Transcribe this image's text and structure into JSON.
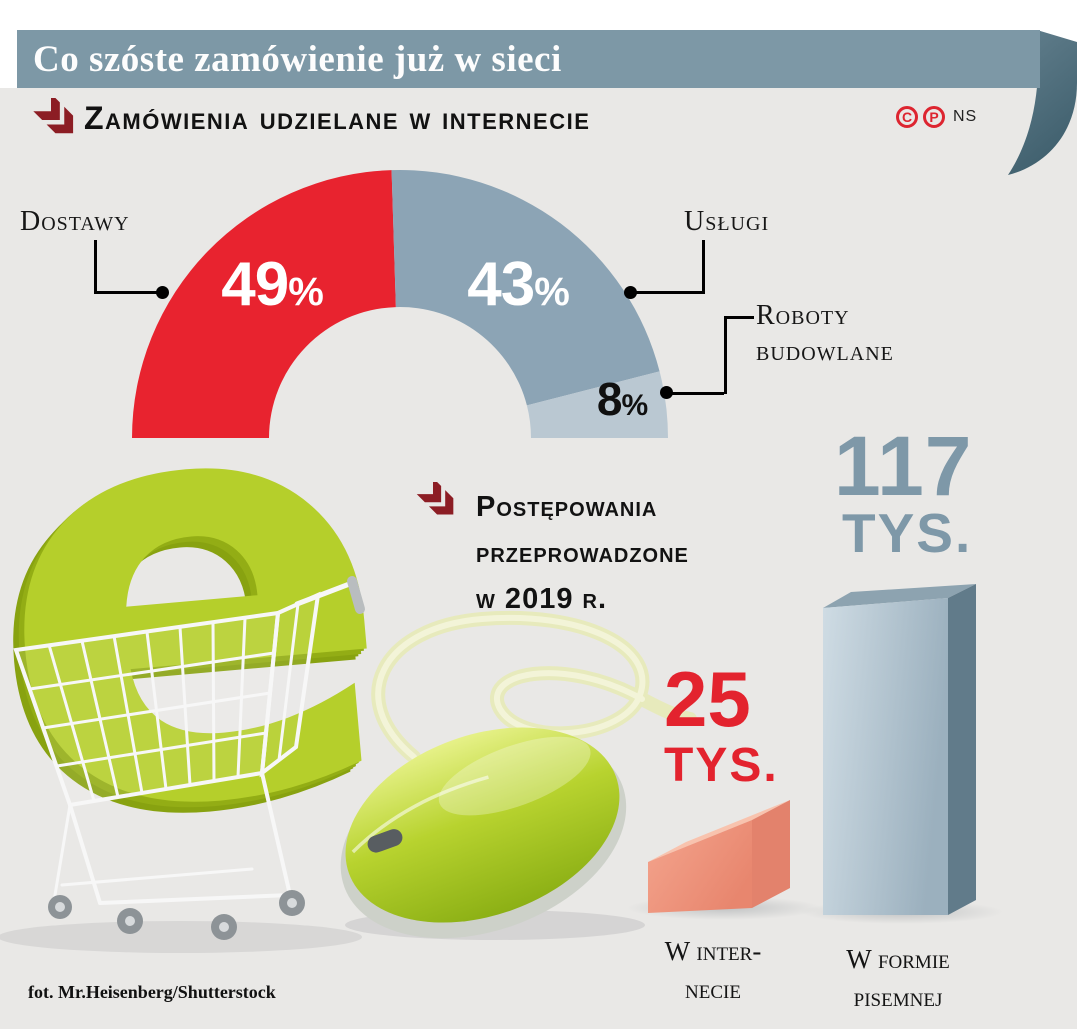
{
  "header": {
    "title": "Co szóste zamówienie już w sieci",
    "marks": {
      "c": "C",
      "p": "P",
      "agency": "NS"
    }
  },
  "sections": {
    "donut_heading": "Zamówienia udzielane w internecie",
    "bars_heading_lines": [
      "Postępowania",
      "przeprowadzone",
      "w 2019 r."
    ]
  },
  "chart_data": [
    {
      "type": "pie",
      "variant": "half-donut",
      "title": "Zamówienia udzielane w internecie",
      "unit": "%",
      "percent_sign": "%",
      "start_angle": 180,
      "end_angle": 0,
      "inner_radius_ratio": 0.49,
      "labels_position": "outside-with-leader-lines",
      "slices": [
        {
          "label": "Dostawy",
          "value": 49,
          "color": "#e8232f",
          "value_color": "#ffffff"
        },
        {
          "label": "Usługi",
          "value": 43,
          "color": "#8ca4b5",
          "value_color": "#ffffff"
        },
        {
          "label": "Roboty budowlane",
          "value": 8,
          "color": "#bac8d2",
          "value_color": "#111111"
        }
      ]
    },
    {
      "type": "bar",
      "title": "Postępowania przeprowadzone w 2019 r.",
      "unit": "tys.",
      "orientation": "vertical",
      "style": "3d",
      "categories": [
        "W internecie",
        "W formie pisemnej"
      ],
      "values": [
        25,
        117
      ],
      "bars": [
        {
          "number": "25",
          "unit_label": "TYS.",
          "label_lines": [
            "W inter-",
            "necie"
          ],
          "color": "#ef947d",
          "value": 25
        },
        {
          "number": "117",
          "unit_label": "TYS.",
          "label_lines": [
            "W formie",
            "pisemnej"
          ],
          "color": "#a7bcca",
          "value": 117
        }
      ]
    }
  ],
  "photo": {
    "letter": "e",
    "credit": "fot. Mr.Heisenberg/Shutterstock"
  }
}
